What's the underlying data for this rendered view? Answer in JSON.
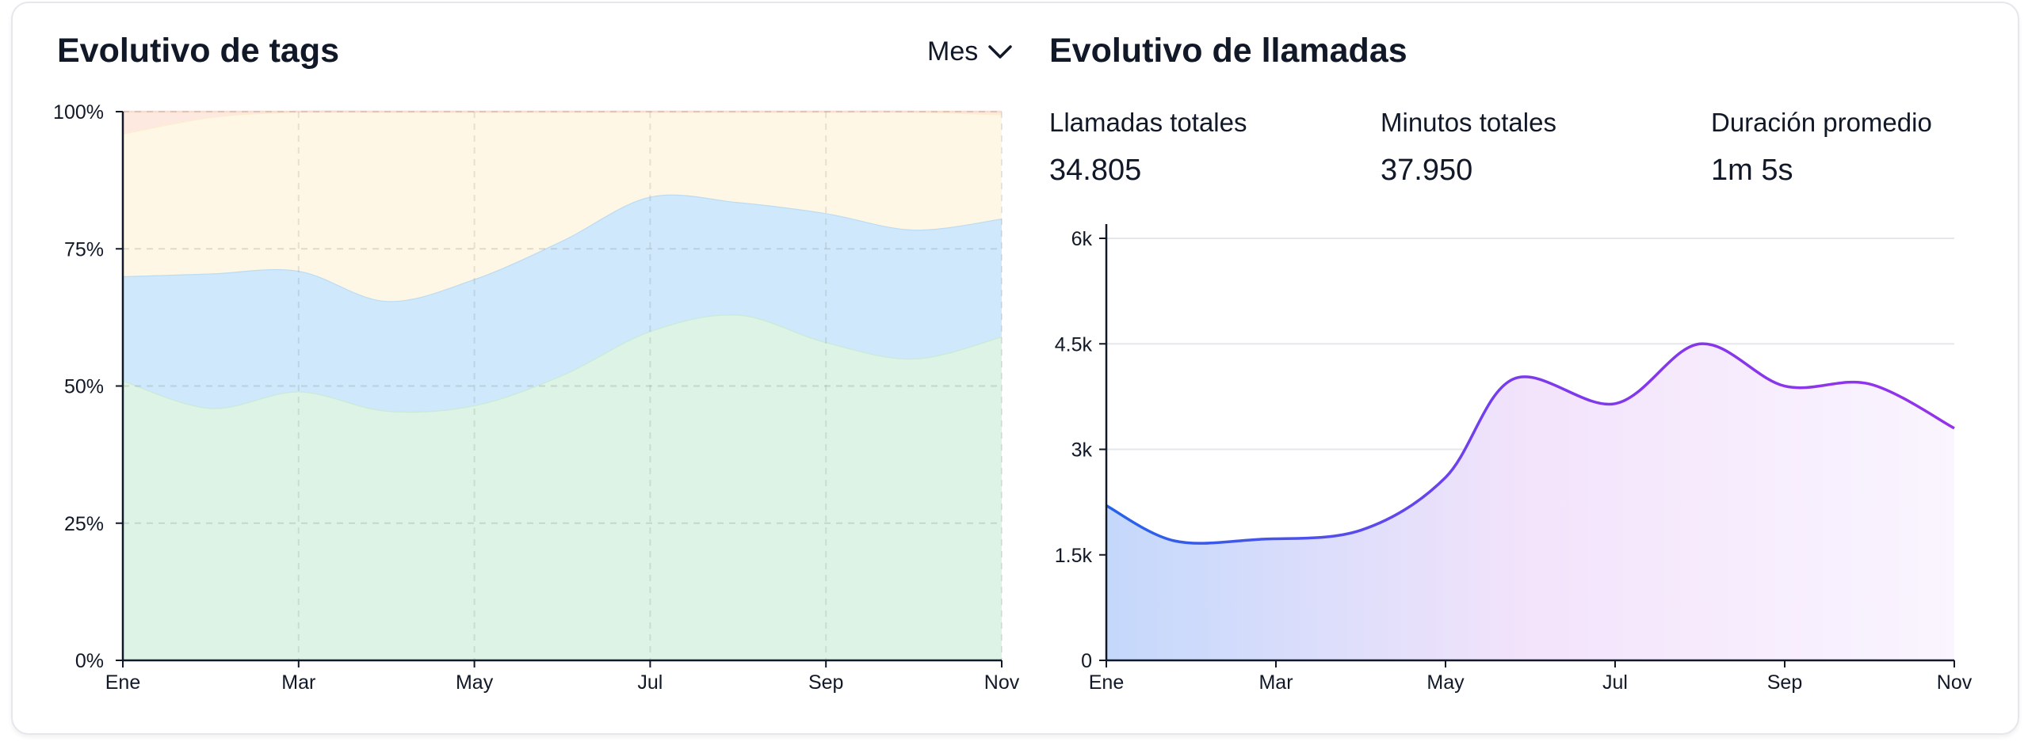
{
  "tags": {
    "title": "Evolutivo de tags",
    "period_selector": {
      "label": "Mes"
    },
    "chart_data": {
      "type": "area",
      "stacked": "percent",
      "categories": [
        "Ene",
        "Mar",
        "May",
        "Jul",
        "Sep",
        "Nov"
      ],
      "x": [
        0,
        1,
        2,
        3,
        4,
        5,
        6,
        7,
        8,
        9,
        10
      ],
      "series": [
        {
          "color": "#dcf3e5",
          "stroke": "#c9ead6",
          "values": [
            51,
            46,
            49,
            45.5,
            46.5,
            52,
            60,
            63,
            58,
            55,
            59
          ]
        },
        {
          "color": "#cfe8fb",
          "stroke": "#bcdcf4",
          "values": [
            19,
            24.5,
            22,
            20,
            23,
            24.5,
            24.5,
            20.5,
            23.5,
            23.5,
            21.5
          ]
        },
        {
          "color": "#fff7e5",
          "stroke": "#fbeed0",
          "values": [
            26,
            28.5,
            29,
            34.5,
            30.5,
            23.5,
            15.5,
            16.5,
            18.5,
            21.5,
            19
          ]
        },
        {
          "color": "#fde9df",
          "stroke": "#f9dccd",
          "values": [
            4,
            1,
            0,
            0,
            0,
            0,
            0,
            0,
            0,
            0,
            0.5
          ]
        }
      ],
      "yticks": [
        "0%",
        "25%",
        "50%",
        "75%",
        "100%"
      ],
      "ylim": [
        0,
        100
      ],
      "grid": "dashed"
    }
  },
  "calls": {
    "title": "Evolutivo de llamadas",
    "stats": [
      {
        "label": "Llamadas totales",
        "value": "34.805"
      },
      {
        "label": "Minutos totales",
        "value": "37.950"
      },
      {
        "label": "Duración promedio",
        "value": "1m 5s"
      }
    ],
    "chart_data": {
      "type": "area",
      "categories": [
        "Ene",
        "Mar",
        "May",
        "Jul",
        "Sep",
        "Nov"
      ],
      "x": [
        0,
        0.4,
        0.9,
        1.5,
        2,
        2.4,
        3,
        3.5,
        4,
        4.5,
        5
      ],
      "values": [
        2200,
        1700,
        1720,
        1850,
        2600,
        4000,
        3650,
        4500,
        3900,
        3930,
        3300
      ],
      "last_value": 3270,
      "yticks": [
        "0",
        "1.5k",
        "3k",
        "4.5k",
        "6k"
      ],
      "ylim": [
        0,
        6000
      ],
      "line_gradient": [
        "#2563eb",
        "#7c3aed",
        "#9333ea"
      ],
      "fill_gradient": [
        "#c4d8fb",
        "#f3e3fb",
        "#faf5ff"
      ]
    }
  }
}
